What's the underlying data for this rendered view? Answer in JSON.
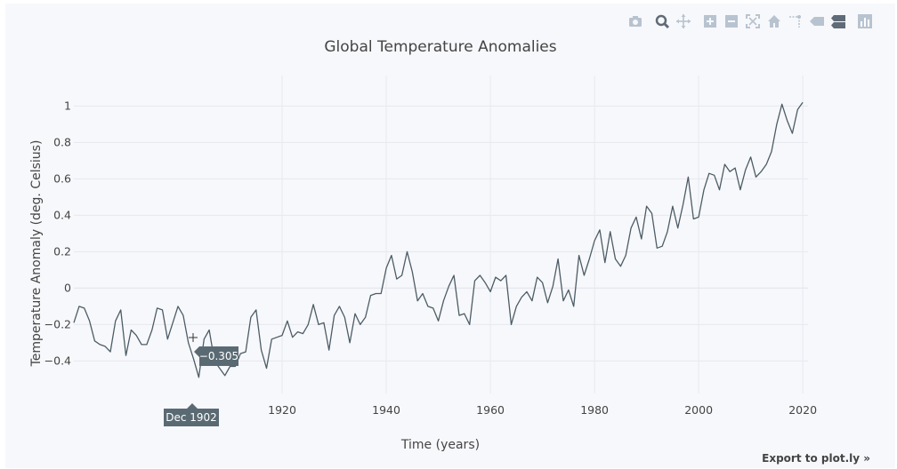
{
  "modebar": {
    "icons": [
      "camera-icon",
      "zoom-icon",
      "pan-icon",
      "zoom-in-icon",
      "zoom-out-icon",
      "autoscale-icon",
      "home-icon",
      "spike-lines-icon",
      "hover-closest-icon",
      "hover-compare-icon",
      "plotly-logo-icon"
    ],
    "color": "#b8c3d0",
    "active_color": "#606b78"
  },
  "export_link": "Export to plot.ly »",
  "hover": {
    "value": "−0.305",
    "x_label": "Dec 1902"
  },
  "colors": {
    "line": "#4c5c66",
    "grid": "#e6e9ef",
    "hover_bg": "#5a6a73"
  },
  "chart_data": {
    "type": "line",
    "title": "Global Temperature Anomalies",
    "xlabel": "Time (years)",
    "ylabel": "Temperature Anomaly (deg. Celsius)",
    "xlim": [
      1880,
      2021
    ],
    "ylim": [
      -0.53,
      1.07
    ],
    "x_ticks": [
      1920,
      1940,
      1960,
      1980,
      2000,
      2020
    ],
    "y_ticks": [
      -0.4,
      -0.2,
      0,
      0.2,
      0.4,
      0.6,
      0.8,
      1
    ],
    "y_tick_labels": [
      "−0.4",
      "−0.2",
      "0",
      "0.2",
      "0.4",
      "0.6",
      "0.8",
      "1"
    ],
    "grid": true,
    "series": [
      {
        "x": [
          1880,
          1881,
          1882,
          1883,
          1884,
          1885,
          1886,
          1887,
          1888,
          1889,
          1890,
          1891,
          1892,
          1893,
          1894,
          1895,
          1896,
          1897,
          1898,
          1899,
          1900,
          1901,
          1902,
          1903,
          1904,
          1905,
          1906,
          1907,
          1908,
          1909,
          1910,
          1911,
          1912,
          1913,
          1914,
          1915,
          1916,
          1917,
          1918,
          1919,
          1920,
          1921,
          1922,
          1923,
          1924,
          1925,
          1926,
          1927,
          1928,
          1929,
          1930,
          1931,
          1932,
          1933,
          1934,
          1935,
          1936,
          1937,
          1938,
          1939,
          1940,
          1941,
          1942,
          1943,
          1944,
          1945,
          1946,
          1947,
          1948,
          1949,
          1950,
          1951,
          1952,
          1953,
          1954,
          1955,
          1956,
          1957,
          1958,
          1959,
          1960,
          1961,
          1962,
          1963,
          1964,
          1965,
          1966,
          1967,
          1968,
          1969,
          1970,
          1971,
          1972,
          1973,
          1974,
          1975,
          1976,
          1977,
          1978,
          1979,
          1980,
          1981,
          1982,
          1983,
          1984,
          1985,
          1986,
          1987,
          1988,
          1989,
          1990,
          1991,
          1992,
          1993,
          1994,
          1995,
          1996,
          1997,
          1998,
          1999,
          2000,
          2001,
          2002,
          2003,
          2004,
          2005,
          2006,
          2007,
          2008,
          2009,
          2010,
          2011,
          2012,
          2013,
          2014,
          2015,
          2016,
          2017,
          2018,
          2019,
          2020
        ],
        "values": [
          -0.19,
          -0.1,
          -0.11,
          -0.18,
          -0.29,
          -0.31,
          -0.32,
          -0.35,
          -0.18,
          -0.12,
          -0.37,
          -0.23,
          -0.26,
          -0.31,
          -0.31,
          -0.23,
          -0.11,
          -0.12,
          -0.28,
          -0.19,
          -0.1,
          -0.15,
          -0.3,
          -0.39,
          -0.49,
          -0.28,
          -0.23,
          -0.4,
          -0.44,
          -0.48,
          -0.43,
          -0.43,
          -0.36,
          -0.35,
          -0.16,
          -0.12,
          -0.34,
          -0.44,
          -0.28,
          -0.27,
          -0.26,
          -0.18,
          -0.27,
          -0.24,
          -0.25,
          -0.2,
          -0.09,
          -0.2,
          -0.19,
          -0.34,
          -0.15,
          -0.1,
          -0.16,
          -0.3,
          -0.14,
          -0.2,
          -0.16,
          -0.04,
          -0.03,
          -0.03,
          0.11,
          0.18,
          0.05,
          0.07,
          0.2,
          0.09,
          -0.07,
          -0.03,
          -0.1,
          -0.11,
          -0.18,
          -0.07,
          0.01,
          0.07,
          -0.15,
          -0.14,
          -0.2,
          0.04,
          0.07,
          0.03,
          -0.02,
          0.06,
          0.04,
          0.07,
          -0.2,
          -0.1,
          -0.05,
          -0.02,
          -0.07,
          0.06,
          0.03,
          -0.08,
          0.01,
          0.16,
          -0.07,
          -0.01,
          -0.1,
          0.18,
          0.07,
          0.16,
          0.26,
          0.32,
          0.14,
          0.31,
          0.16,
          0.12,
          0.18,
          0.33,
          0.39,
          0.27,
          0.45,
          0.41,
          0.22,
          0.23,
          0.31,
          0.45,
          0.33,
          0.46,
          0.61,
          0.38,
          0.39,
          0.54,
          0.63,
          0.62,
          0.54,
          0.68,
          0.64,
          0.66,
          0.54,
          0.65,
          0.72,
          0.61,
          0.64,
          0.68,
          0.75,
          0.9,
          1.01,
          0.92,
          0.85,
          0.98,
          1.02
        ]
      }
    ]
  }
}
